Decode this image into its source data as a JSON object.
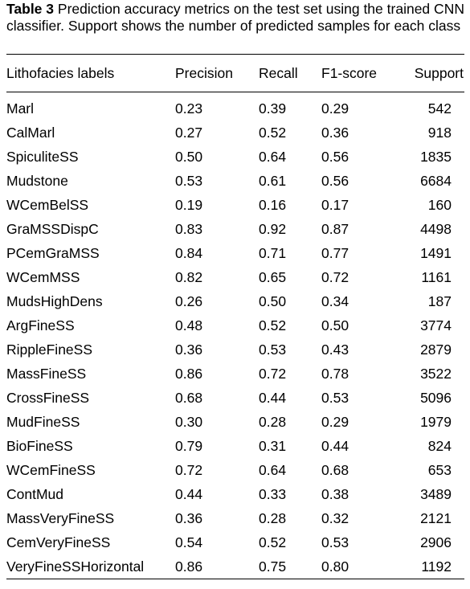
{
  "caption": {
    "label": "Table 3",
    "text": "Prediction accuracy metrics on the test set using the trained CNN classifier. Support shows the number of predicted samples for each class"
  },
  "table": {
    "headers": [
      "Lithofacies labels",
      "Precision",
      "Recall",
      "F1-score",
      "Support"
    ],
    "rows": [
      [
        "Marl",
        "0.23",
        "0.39",
        "0.29",
        "542"
      ],
      [
        "CalMarl",
        "0.27",
        "0.52",
        "0.36",
        "918"
      ],
      [
        "SpiculiteSS",
        "0.50",
        "0.64",
        "0.56",
        "1835"
      ],
      [
        "Mudstone",
        "0.53",
        "0.61",
        "0.56",
        "6684"
      ],
      [
        "WCemBelSS",
        "0.19",
        "0.16",
        "0.17",
        "160"
      ],
      [
        "GraMSSDispC",
        "0.83",
        "0.92",
        "0.87",
        "4498"
      ],
      [
        "PCemGraMSS",
        "0.84",
        "0.71",
        "0.77",
        "1491"
      ],
      [
        "WCemMSS",
        "0.82",
        "0.65",
        "0.72",
        "1161"
      ],
      [
        "MudsHighDens",
        "0.26",
        "0.50",
        "0.34",
        "187"
      ],
      [
        "ArgFineSS",
        "0.48",
        "0.52",
        "0.50",
        "3774"
      ],
      [
        "RippleFineSS",
        "0.36",
        "0.53",
        "0.43",
        "2879"
      ],
      [
        "MassFineSS",
        "0.86",
        "0.72",
        "0.78",
        "3522"
      ],
      [
        "CrossFineSS",
        "0.68",
        "0.44",
        "0.53",
        "5096"
      ],
      [
        "MudFineSS",
        "0.30",
        "0.28",
        "0.29",
        "1979"
      ],
      [
        "BioFineSS",
        "0.79",
        "0.31",
        "0.44",
        "824"
      ],
      [
        "WCemFineSS",
        "0.72",
        "0.64",
        "0.68",
        "653"
      ],
      [
        "ContMud",
        "0.44",
        "0.33",
        "0.38",
        "3489"
      ],
      [
        "MassVeryFineSS",
        "0.36",
        "0.28",
        "0.32",
        "2121"
      ],
      [
        "CemVeryFineSS",
        "0.54",
        "0.52",
        "0.53",
        "2906"
      ],
      [
        "VeryFineSSHorizontal",
        "0.86",
        "0.75",
        "0.80",
        "1192"
      ]
    ]
  }
}
